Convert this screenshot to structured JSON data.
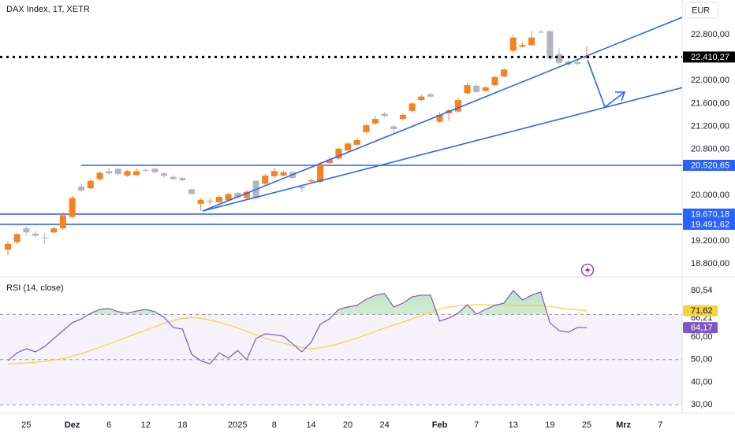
{
  "chart_data": [
    {
      "type": "candlestick",
      "title": "DAX Index, 1T, XETR",
      "currency": "EUR",
      "open": [
        19050,
        19180,
        19420,
        19330,
        19260,
        19350,
        19420,
        19620,
        20150,
        20120,
        20280,
        20420,
        20460,
        20340,
        20350,
        20440,
        20460,
        20380,
        20320,
        20300,
        20100,
        19850,
        19890,
        19880,
        19910,
        20040,
        19950,
        20250,
        20200,
        20330,
        20340,
        20400,
        20150,
        20240,
        20230,
        20560,
        20640,
        20780,
        20880,
        21100,
        21250,
        21420,
        21200,
        21330,
        21470,
        21660,
        21760,
        21280,
        21430,
        21460,
        21780,
        21910,
        21820,
        21920,
        22070,
        22520,
        22590,
        22620,
        22850,
        22860,
        22460,
        22330,
        22320,
        22390
      ],
      "high": [
        19200,
        19340,
        19460,
        19380,
        19330,
        19450,
        19700,
        19990,
        20200,
        20280,
        20420,
        20480,
        20480,
        20440,
        20470,
        20460,
        20480,
        20400,
        20350,
        20320,
        20130,
        19950,
        19960,
        20000,
        20040,
        20060,
        20090,
        20260,
        20370,
        20480,
        20430,
        20420,
        20180,
        20290,
        20580,
        20660,
        20830,
        20930,
        21000,
        21250,
        21380,
        21450,
        21230,
        21430,
        21620,
        21760,
        21790,
        21450,
        21510,
        21700,
        21950,
        21950,
        21900,
        22080,
        22220,
        22800,
        22660,
        22860,
        22880,
        22880,
        22560,
        22350,
        22400,
        22600
      ],
      "low": [
        18950,
        19150,
        19300,
        19250,
        19150,
        19330,
        19400,
        19600,
        20050,
        20100,
        20250,
        20350,
        20340,
        20320,
        20330,
        20400,
        20390,
        20300,
        20260,
        20240,
        20010,
        19720,
        19830,
        19860,
        19890,
        19940,
        19920,
        19930,
        20180,
        20300,
        20330,
        20280,
        20050,
        20220,
        20210,
        20540,
        20620,
        20760,
        20860,
        21080,
        21230,
        21360,
        21080,
        21310,
        21450,
        21640,
        21700,
        21260,
        21300,
        21440,
        21760,
        21780,
        21800,
        21900,
        22050,
        22480,
        22580,
        22600,
        22830,
        22340,
        22280,
        22250,
        22260,
        22380
      ],
      "close": [
        19150,
        19320,
        19350,
        19290,
        19250,
        19420,
        19650,
        19950,
        20080,
        20250,
        20390,
        20380,
        20370,
        20420,
        20420,
        20430,
        20400,
        20340,
        20280,
        20260,
        20020,
        19920,
        19900,
        19970,
        20020,
        19960,
        20060,
        19950,
        20340,
        20420,
        20400,
        20300,
        20120,
        20260,
        20540,
        20620,
        20810,
        20900,
        20960,
        21220,
        21330,
        21380,
        21150,
        21400,
        21600,
        21720,
        21720,
        21400,
        21480,
        21660,
        21920,
        21800,
        21880,
        22060,
        22190,
        22750,
        22620,
        22750,
        22840,
        22380,
        22310,
        22280,
        22290,
        22410.27
      ],
      "last_close_label": "22.410,27",
      "up_color": "#f7821b",
      "down_color": "#b2b5be",
      "ylim": [
        18570,
        23405
      ],
      "yticks": [
        {
          "value": 22800,
          "label": "22.800,00"
        },
        {
          "value": 22000,
          "label": "22.000,00"
        },
        {
          "value": 21600,
          "label": "21.600,00"
        },
        {
          "value": 21200,
          "label": "21.200,00"
        },
        {
          "value": 20800,
          "label": "20.800,00"
        },
        {
          "value": 20000,
          "label": "20.000,00"
        },
        {
          "value": 19200,
          "label": "19.200,00"
        },
        {
          "value": 18800,
          "label": "18.800,00"
        }
      ],
      "xticks": [
        {
          "value": 2,
          "label": "25"
        },
        {
          "value": 7,
          "label": "Dez"
        },
        {
          "value": 11,
          "label": "6"
        },
        {
          "value": 15,
          "label": "12"
        },
        {
          "value": 19,
          "label": "18"
        },
        {
          "value": 25,
          "label": "2025"
        },
        {
          "value": 29,
          "label": "8"
        },
        {
          "value": 33,
          "label": "14"
        },
        {
          "value": 37,
          "label": "20"
        },
        {
          "value": 41,
          "label": "24"
        },
        {
          "value": 47,
          "label": "Feb"
        },
        {
          "value": 51,
          "label": "7"
        },
        {
          "value": 55,
          "label": "13"
        },
        {
          "value": 59,
          "label": "19"
        },
        {
          "value": 63,
          "label": "25"
        },
        {
          "value": 67,
          "label": "Mrz"
        },
        {
          "value": 71,
          "label": "7"
        }
      ],
      "levels": [
        {
          "value": 20520.65,
          "label": "20.520,65",
          "color": "#2962ff"
        },
        {
          "value": 19670.18,
          "label": "19.670,18",
          "color": "#2962ff"
        },
        {
          "value": 19491.62,
          "label": "19.491,62",
          "color": "#2962ff"
        }
      ],
      "grid": false
    },
    {
      "type": "line",
      "title": "RSI (14, close)",
      "series": [
        {
          "color": "#7e57c2",
          "last_label": "64,17",
          "values": [
            49.5,
            53,
            54.8,
            53.4,
            55.8,
            59.3,
            62.8,
            66.3,
            68,
            70.5,
            72.2,
            72.6,
            71.2,
            70.5,
            71.5,
            72.2,
            71.2,
            68.7,
            64.2,
            63.5,
            52.3,
            49.5,
            48.1,
            53,
            50.6,
            54,
            49.9,
            59.3,
            61.4,
            61,
            60.3,
            56.9,
            53.4,
            57.6,
            65.6,
            68,
            72.2,
            73.3,
            74,
            76.7,
            78.5,
            79.2,
            73.3,
            75,
            77.8,
            78.5,
            78.5,
            67,
            68.4,
            70.5,
            74.3,
            70.1,
            72.2,
            74,
            75,
            80.54,
            76.4,
            78.5,
            79.9,
            66.3,
            62.8,
            62.1,
            64.2,
            64.17
          ]
        },
        {
          "color": "#f5d33f",
          "last_label": "71,62",
          "values": [
            48.1,
            48.3,
            48.5,
            48.8,
            49.2,
            49.8,
            50.5,
            51.5,
            52.6,
            54,
            55.5,
            57,
            58.5,
            60,
            61.5,
            63,
            64.5,
            66,
            67.3,
            68.2,
            68.6,
            68.3,
            67.5,
            66.5,
            65.3,
            64,
            62.5,
            61,
            59.5,
            58.3,
            57.3,
            56.3,
            55.4,
            54.8,
            55.2,
            56,
            57,
            58.2,
            59.5,
            61,
            62.5,
            64,
            65.3,
            66.6,
            68,
            69.4,
            71,
            72.4,
            73.3,
            73.8,
            74.1,
            74.3,
            74.3,
            74.2,
            74.1,
            74,
            74,
            73.9,
            73.8,
            73.5,
            73,
            72.4,
            72,
            71.62
          ]
        }
      ],
      "ylim": [
        26.2,
        86.5
      ],
      "yticks": [
        {
          "value": 80.54,
          "label": "80,54"
        },
        {
          "value": 66.21,
          "label": "66,21"
        },
        {
          "value": 60,
          "label": "60,00"
        },
        {
          "value": 50,
          "label": "50,00"
        },
        {
          "value": 40,
          "label": "40,00"
        },
        {
          "value": 30,
          "label": "30,00"
        }
      ],
      "bands": [
        70,
        50,
        30
      ],
      "band_color": "#7e57c2",
      "overbought_color": "#4caf50"
    }
  ]
}
